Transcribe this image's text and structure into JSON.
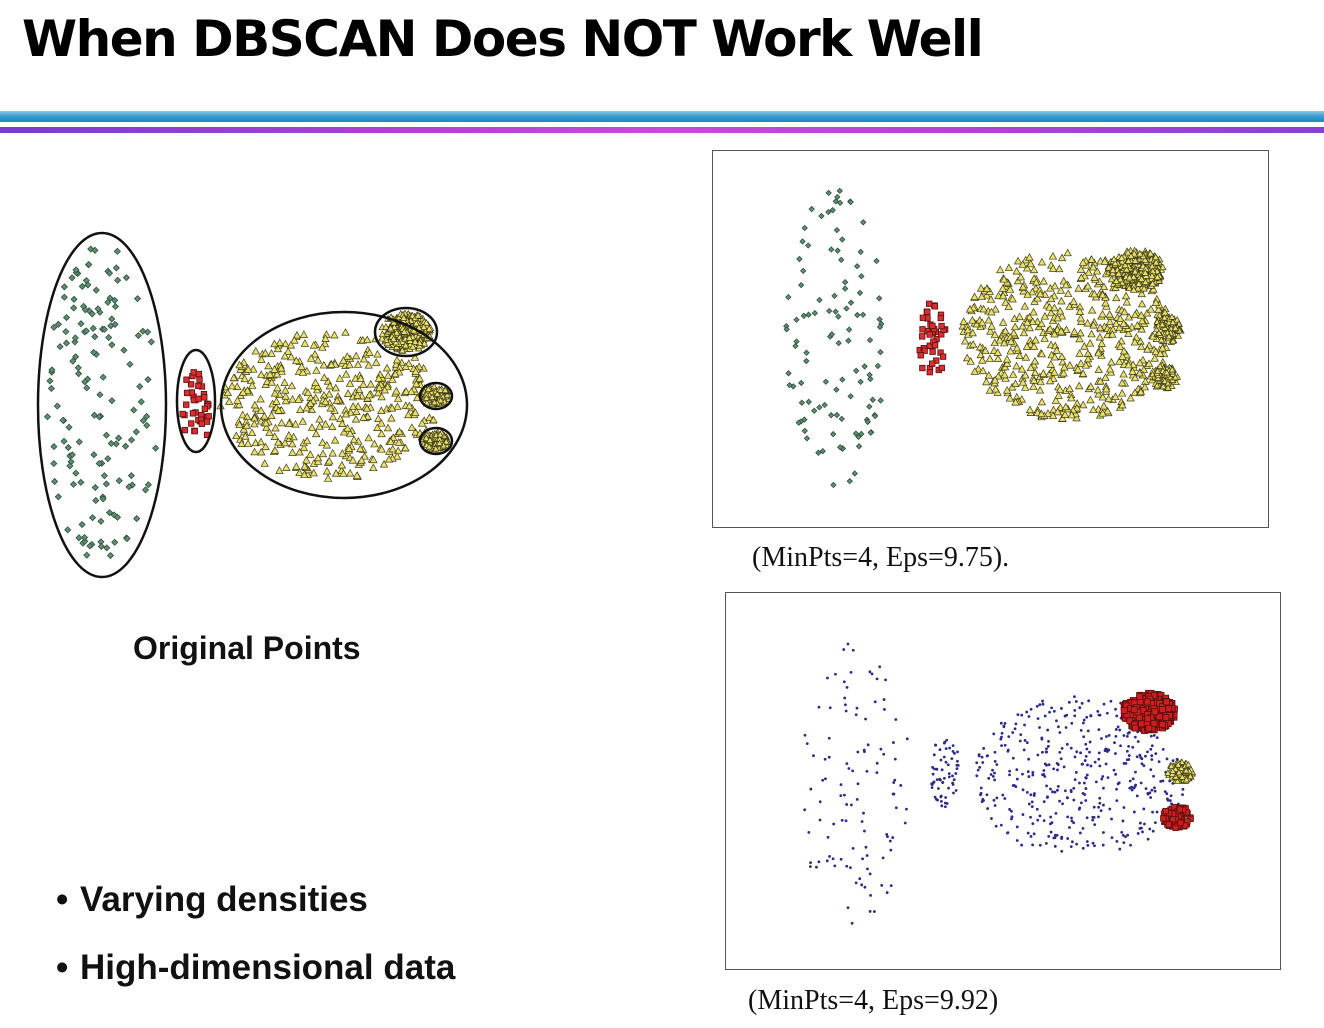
{
  "slide": {
    "title": "When DBSCAN Does NOT Work Well",
    "colors": {
      "accent_blue": "#2a94cb",
      "accent_purple": "#b544d8"
    }
  },
  "panels": {
    "original": {
      "caption": "Original Points"
    },
    "result_1": {
      "caption": "(MinPts=4, Eps=9.75)."
    },
    "result_2": {
      "caption": "(MinPts=4, Eps=9.92)"
    }
  },
  "bullets": [
    {
      "bullet": "•",
      "text": "Varying densities"
    },
    {
      "bullet": "•",
      "text": "High-dimensional  data"
    }
  ]
}
